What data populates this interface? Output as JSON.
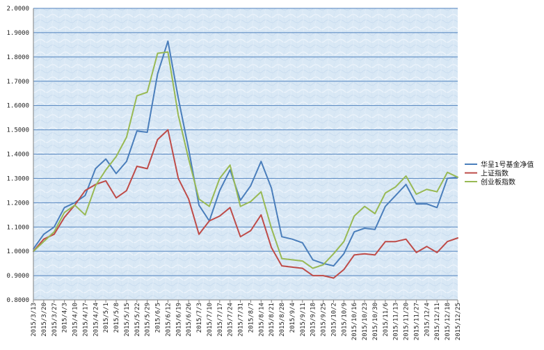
{
  "chart_data": {
    "type": "line",
    "title": "",
    "xlabel": "",
    "ylabel": "",
    "ylim": [
      0.8,
      2.0
    ],
    "y_ticks": [
      "0.8000",
      "0.9000",
      "1.0000",
      "1.1000",
      "1.2000",
      "1.3000",
      "1.4000",
      "1.5000",
      "1.6000",
      "1.7000",
      "1.8000",
      "1.9000",
      "2.0000"
    ],
    "x_ticks": [
      "2015/3/13",
      "2015/3/20",
      "2015/3/27",
      "2015/4/3",
      "2015/4/10",
      "2015/4/17",
      "2015/4/24",
      "2015/5/1",
      "2015/5/8",
      "2015/5/15",
      "2015/5/22",
      "2015/5/29",
      "2015/6/5",
      "2015/6/12",
      "2015/6/19",
      "2015/6/26",
      "2015/7/3",
      "2015/7/10",
      "2015/7/17",
      "2015/7/24",
      "2015/7/31",
      "2015/8/7",
      "2015/8/14",
      "2015/8/21",
      "2015/8/28",
      "2015/9/4",
      "2015/9/11",
      "2015/9/18",
      "2015/9/25",
      "2015/10/2",
      "2015/10/9",
      "2015/10/16",
      "2015/10/23",
      "2015/10/30",
      "2015/11/6",
      "2015/11/13",
      "2015/11/20",
      "2015/11/27",
      "2015/12/4",
      "2015/12/11",
      "2015/12/18",
      "2015/12/25"
    ],
    "grid": true,
    "legend_position": "right",
    "series": [
      {
        "name": "华呈1号基金净值",
        "color": "#4a7ebb",
        "points": [
          [
            "2015/3/13",
            1.01
          ],
          [
            "2015/3/20",
            1.07
          ],
          [
            "2015/3/27",
            1.1
          ],
          [
            "2015/4/3",
            1.18
          ],
          [
            "2015/4/10",
            1.2
          ],
          [
            "2015/4/17",
            1.23
          ],
          [
            "2015/4/24",
            1.34
          ],
          [
            "2015/5/1",
            1.38
          ],
          [
            "2015/5/8",
            1.32
          ],
          [
            "2015/5/15",
            1.37
          ],
          [
            "2015/5/22",
            1.495
          ],
          [
            "2015/5/29",
            1.49
          ],
          [
            "2015/6/5",
            1.73
          ],
          [
            "2015/6/12",
            1.865
          ],
          [
            "2015/6/19",
            1.63
          ],
          [
            "2015/6/26",
            1.42
          ],
          [
            "2015/7/3",
            1.19
          ],
          [
            "2015/7/10",
            1.125
          ],
          [
            "2015/7/17",
            1.25
          ],
          [
            "2015/7/24",
            1.335
          ],
          [
            "2015/7/31",
            1.21
          ],
          [
            "2015/8/7",
            1.27
          ],
          [
            "2015/8/14",
            1.37
          ],
          [
            "2015/8/21",
            1.26
          ],
          [
            "2015/8/28",
            1.06
          ],
          [
            "2015/9/4",
            1.05
          ],
          [
            "2015/9/11",
            1.035
          ],
          [
            "2015/9/18",
            0.965
          ],
          [
            "2015/9/25",
            0.95
          ],
          [
            "2015/10/2",
            0.94
          ],
          [
            "2015/10/9",
            0.99
          ],
          [
            "2015/10/16",
            1.08
          ],
          [
            "2015/10/23",
            1.095
          ],
          [
            "2015/10/30",
            1.09
          ],
          [
            "2015/11/6",
            1.185
          ],
          [
            "2015/11/13",
            1.23
          ],
          [
            "2015/11/20",
            1.275
          ],
          [
            "2015/11/27",
            1.195
          ],
          [
            "2015/12/4",
            1.195
          ],
          [
            "2015/12/11",
            1.18
          ],
          [
            "2015/12/18",
            1.3
          ],
          [
            "2015/12/25",
            1.305
          ]
        ]
      },
      {
        "name": "上证指数",
        "color": "#be4b48",
        "points": [
          [
            "2015/3/13",
            1.0
          ],
          [
            "2015/3/20",
            1.05
          ],
          [
            "2015/3/27",
            1.07
          ],
          [
            "2015/4/3",
            1.14
          ],
          [
            "2015/4/10",
            1.19
          ],
          [
            "2015/4/17",
            1.25
          ],
          [
            "2015/4/24",
            1.275
          ],
          [
            "2015/5/1",
            1.29
          ],
          [
            "2015/5/8",
            1.22
          ],
          [
            "2015/5/15",
            1.25
          ],
          [
            "2015/5/22",
            1.35
          ],
          [
            "2015/5/29",
            1.34
          ],
          [
            "2015/6/5",
            1.46
          ],
          [
            "2015/6/12",
            1.5
          ],
          [
            "2015/6/19",
            1.3
          ],
          [
            "2015/6/26",
            1.215
          ],
          [
            "2015/7/3",
            1.07
          ],
          [
            "2015/7/10",
            1.125
          ],
          [
            "2015/7/17",
            1.145
          ],
          [
            "2015/7/24",
            1.18
          ],
          [
            "2015/7/31",
            1.06
          ],
          [
            "2015/8/7",
            1.085
          ],
          [
            "2015/8/14",
            1.15
          ],
          [
            "2015/8/21",
            1.015
          ],
          [
            "2015/8/28",
            0.94
          ],
          [
            "2015/9/4",
            0.935
          ],
          [
            "2015/9/11",
            0.93
          ],
          [
            "2015/9/18",
            0.9
          ],
          [
            "2015/9/25",
            0.9
          ],
          [
            "2015/10/2",
            0.89
          ],
          [
            "2015/10/9",
            0.925
          ],
          [
            "2015/10/16",
            0.985
          ],
          [
            "2015/10/23",
            0.99
          ],
          [
            "2015/10/30",
            0.985
          ],
          [
            "2015/11/6",
            1.04
          ],
          [
            "2015/11/13",
            1.04
          ],
          [
            "2015/11/20",
            1.05
          ],
          [
            "2015/11/27",
            0.995
          ],
          [
            "2015/12/4",
            1.02
          ],
          [
            "2015/12/11",
            0.995
          ],
          [
            "2015/12/18",
            1.04
          ],
          [
            "2015/12/25",
            1.055
          ]
        ]
      },
      {
        "name": "创业板指数",
        "color": "#98b954",
        "points": [
          [
            "2015/3/13",
            1.0
          ],
          [
            "2015/3/20",
            1.04
          ],
          [
            "2015/3/27",
            1.08
          ],
          [
            "2015/4/3",
            1.16
          ],
          [
            "2015/4/10",
            1.19
          ],
          [
            "2015/4/17",
            1.15
          ],
          [
            "2015/4/24",
            1.27
          ],
          [
            "2015/5/1",
            1.335
          ],
          [
            "2015/5/8",
            1.39
          ],
          [
            "2015/5/15",
            1.47
          ],
          [
            "2015/5/22",
            1.64
          ],
          [
            "2015/5/29",
            1.655
          ],
          [
            "2015/6/5",
            1.815
          ],
          [
            "2015/6/12",
            1.82
          ],
          [
            "2015/6/19",
            1.56
          ],
          [
            "2015/6/26",
            1.38
          ],
          [
            "2015/7/3",
            1.215
          ],
          [
            "2015/7/10",
            1.185
          ],
          [
            "2015/7/17",
            1.3
          ],
          [
            "2015/7/24",
            1.355
          ],
          [
            "2015/7/31",
            1.185
          ],
          [
            "2015/8/7",
            1.205
          ],
          [
            "2015/8/14",
            1.245
          ],
          [
            "2015/8/21",
            1.095
          ],
          [
            "2015/8/28",
            0.97
          ],
          [
            "2015/9/4",
            0.965
          ],
          [
            "2015/9/11",
            0.96
          ],
          [
            "2015/9/18",
            0.93
          ],
          [
            "2015/9/25",
            0.945
          ],
          [
            "2015/10/2",
            0.99
          ],
          [
            "2015/10/9",
            1.04
          ],
          [
            "2015/10/16",
            1.145
          ],
          [
            "2015/10/23",
            1.185
          ],
          [
            "2015/10/30",
            1.155
          ],
          [
            "2015/11/6",
            1.24
          ],
          [
            "2015/11/13",
            1.265
          ],
          [
            "2015/11/20",
            1.31
          ],
          [
            "2015/11/27",
            1.235
          ],
          [
            "2015/12/4",
            1.255
          ],
          [
            "2015/12/11",
            1.245
          ],
          [
            "2015/12/18",
            1.325
          ],
          [
            "2015/12/25",
            1.305
          ]
        ]
      }
    ]
  }
}
